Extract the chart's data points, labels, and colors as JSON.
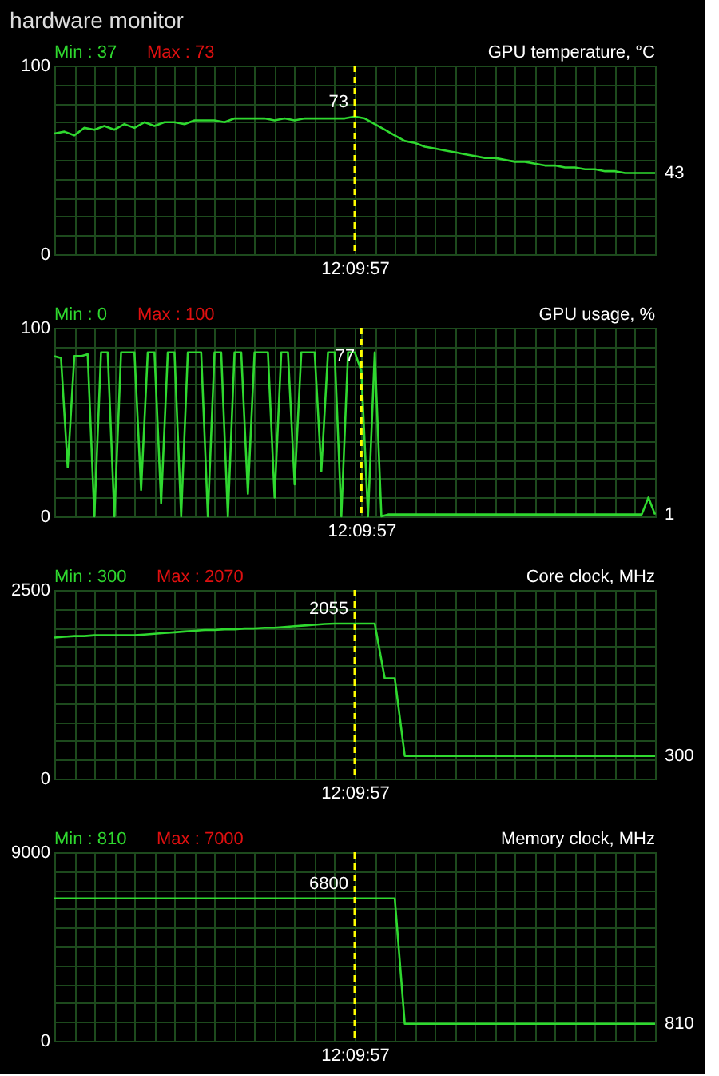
{
  "chart_data": [
    {
      "type": "line",
      "title": "hardware monitor",
      "subtitle": "GPU temperature, °C",
      "categories": [
        null,
        null,
        null,
        null,
        null,
        null,
        null,
        null,
        null,
        null,
        null,
        null,
        null,
        null,
        null,
        null,
        null,
        null,
        null,
        null,
        null,
        null,
        null,
        null,
        null,
        null,
        null,
        null,
        null,
        null,
        "12:09:57",
        null,
        null,
        null,
        null,
        null,
        null,
        null,
        null,
        null,
        null,
        null,
        null,
        null,
        null,
        null,
        null,
        null,
        null,
        null,
        null,
        null,
        null,
        null,
        null,
        null,
        null,
        null,
        null,
        null,
        null
      ],
      "series": [
        {
          "color": "#2fd82f",
          "values": [
            64,
            65,
            63,
            67,
            66,
            68,
            66,
            69,
            67,
            70,
            68,
            70,
            70,
            69,
            71,
            71,
            71,
            70,
            72,
            72,
            72,
            72,
            71,
            72,
            71,
            72,
            72,
            72,
            72,
            72,
            73,
            72,
            69,
            66,
            63,
            60,
            59,
            57,
            56,
            55,
            54,
            53,
            52,
            51,
            51,
            50,
            49,
            49,
            48,
            47,
            47,
            46,
            46,
            45,
            45,
            44,
            44,
            43,
            43,
            43,
            43
          ]
        }
      ],
      "ylim": [
        0,
        100
      ],
      "yticks": [
        0,
        {
          "value": 10,
          "label": null
        },
        {
          "value": 20,
          "label": null
        },
        {
          "value": 30,
          "label": null
        },
        {
          "value": 40,
          "label": null
        },
        {
          "value": 50,
          "label": null
        },
        {
          "value": 60,
          "label": null
        },
        {
          "value": 70,
          "label": null
        },
        {
          "value": 80,
          "label": null
        },
        {
          "value": 90,
          "label": null
        },
        100
      ],
      "grid": true,
      "ref_lines": [
        {
          "axis": "x",
          "value": "12:09:57",
          "color": "#ffff00",
          "line_style": "dashed"
        }
      ],
      "annotations": [
        "Min : 37",
        "Max : 73",
        {
          "text": "73",
          "x": "12:09:57",
          "y": 73
        },
        "43"
      ]
    },
    {
      "type": "line",
      "subtitle": "GPU usage, %",
      "categories": [
        null,
        null,
        null,
        null,
        null,
        null,
        null,
        null,
        null,
        null,
        null,
        null,
        null,
        null,
        null,
        null,
        null,
        null,
        null,
        null,
        null,
        null,
        null,
        null,
        null,
        null,
        null,
        null,
        null,
        null,
        null,
        null,
        null,
        null,
        null,
        null,
        null,
        null,
        null,
        null,
        null,
        null,
        null,
        null,
        null,
        null,
        "12:09:57",
        null,
        null,
        null,
        null,
        null,
        null,
        null,
        null,
        null,
        null,
        null,
        null,
        null,
        null,
        null,
        null,
        null,
        null,
        null,
        null,
        null,
        null,
        null,
        null,
        null,
        null,
        null,
        null,
        null,
        null,
        null,
        null,
        null,
        null,
        null,
        null,
        null,
        null,
        null,
        null,
        null,
        null,
        null,
        null
      ],
      "series": [
        {
          "color": "#2fd82f",
          "values": [
            85,
            84,
            26,
            85,
            85,
            86,
            0,
            87,
            87,
            0,
            87,
            87,
            87,
            14,
            87,
            87,
            7,
            87,
            87,
            0,
            87,
            87,
            87,
            0,
            87,
            87,
            0,
            87,
            87,
            12,
            87,
            87,
            87,
            10,
            87,
            87,
            17,
            87,
            87,
            87,
            24,
            87,
            87,
            0,
            87,
            87,
            77,
            0,
            87,
            0,
            1,
            1,
            1,
            1,
            1,
            1,
            1,
            1,
            1,
            1,
            1,
            1,
            1,
            1,
            1,
            1,
            1,
            1,
            1,
            1,
            1,
            1,
            1,
            1,
            1,
            1,
            1,
            1,
            1,
            1,
            1,
            1,
            1,
            1,
            1,
            1,
            1,
            1,
            1,
            10,
            1
          ]
        }
      ],
      "ylim": [
        0,
        100
      ],
      "yticks": [
        0,
        {
          "value": 10,
          "label": null
        },
        {
          "value": 20,
          "label": null
        },
        {
          "value": 30,
          "label": null
        },
        {
          "value": 40,
          "label": null
        },
        {
          "value": 50,
          "label": null
        },
        {
          "value": 60,
          "label": null
        },
        {
          "value": 70,
          "label": null
        },
        {
          "value": 80,
          "label": null
        },
        {
          "value": 90,
          "label": null
        },
        100
      ],
      "grid": true,
      "ref_lines": [
        {
          "axis": "x",
          "value": "12:09:57",
          "color": "#ffff00",
          "line_style": "dashed"
        }
      ],
      "annotations": [
        "Min : 0",
        "Max : 100",
        {
          "text": "77",
          "x": "12:09:57",
          "y": 77
        },
        "1"
      ]
    },
    {
      "type": "line",
      "subtitle": "Core clock, MHz",
      "categories": [
        null,
        null,
        null,
        null,
        null,
        null,
        null,
        null,
        null,
        null,
        null,
        null,
        null,
        null,
        null,
        null,
        null,
        null,
        null,
        null,
        null,
        null,
        null,
        null,
        null,
        null,
        null,
        null,
        null,
        null,
        "12:09:57",
        null,
        null,
        null,
        null,
        null,
        null,
        null,
        null,
        null,
        null,
        null,
        null,
        null,
        null,
        null,
        null,
        null,
        null,
        null,
        null,
        null,
        null,
        null,
        null,
        null,
        null,
        null,
        null,
        null,
        null
      ],
      "series": [
        {
          "color": "#2fd82f",
          "values": [
            1870,
            1880,
            1890,
            1890,
            1900,
            1900,
            1900,
            1900,
            1900,
            1910,
            1920,
            1930,
            1940,
            1950,
            1960,
            1970,
            1970,
            1980,
            1980,
            1990,
            1990,
            2000,
            2000,
            2010,
            2020,
            2030,
            2040,
            2050,
            2055,
            2055,
            2055,
            2055,
            2055,
            1330,
            1330,
            300,
            300,
            300,
            300,
            300,
            300,
            300,
            300,
            300,
            300,
            300,
            300,
            300,
            300,
            300,
            300,
            300,
            300,
            300,
            300,
            300,
            300,
            300,
            300,
            300,
            300
          ]
        }
      ],
      "ylim": [
        0,
        2500
      ],
      "yticks": [
        0,
        {
          "value": 250,
          "label": null
        },
        {
          "value": 500,
          "label": null
        },
        {
          "value": 750,
          "label": null
        },
        {
          "value": 1000,
          "label": null
        },
        {
          "value": 1250,
          "label": null
        },
        {
          "value": 1500,
          "label": null
        },
        {
          "value": 1750,
          "label": null
        },
        {
          "value": 2000,
          "label": null
        },
        {
          "value": 2250,
          "label": null
        },
        2500
      ],
      "grid": true,
      "ref_lines": [
        {
          "axis": "x",
          "value": "12:09:57",
          "color": "#ffff00",
          "line_style": "dashed"
        }
      ],
      "annotations": [
        "Min : 300",
        "Max : 2070",
        {
          "text": "2055",
          "x": "12:09:57",
          "y": 2055
        },
        "300"
      ]
    },
    {
      "type": "line",
      "subtitle": "Memory clock, MHz",
      "categories": [
        null,
        null,
        null,
        null,
        null,
        null,
        null,
        null,
        null,
        null,
        null,
        null,
        null,
        null,
        null,
        null,
        null,
        null,
        null,
        null,
        null,
        null,
        null,
        null,
        null,
        null,
        null,
        null,
        null,
        null,
        "12:09:57",
        null,
        null,
        null,
        null,
        null,
        null,
        null,
        null,
        null,
        null,
        null,
        null,
        null,
        null,
        null,
        null,
        null,
        null,
        null,
        null,
        null,
        null,
        null,
        null,
        null,
        null,
        null,
        null,
        null,
        null
      ],
      "series": [
        {
          "color": "#2fd82f",
          "values": [
            6800,
            6800,
            6800,
            6800,
            6800,
            6800,
            6800,
            6800,
            6800,
            6800,
            6800,
            6800,
            6800,
            6800,
            6800,
            6800,
            6800,
            6800,
            6800,
            6800,
            6800,
            6800,
            6800,
            6800,
            6800,
            6800,
            6800,
            6800,
            6800,
            6800,
            6800,
            6800,
            6800,
            6800,
            6800,
            810,
            810,
            810,
            810,
            810,
            810,
            810,
            810,
            810,
            810,
            810,
            810,
            810,
            810,
            810,
            810,
            810,
            810,
            810,
            810,
            810,
            810,
            810,
            810,
            810,
            810
          ]
        }
      ],
      "ylim": [
        0,
        9000
      ],
      "yticks": [
        0,
        {
          "value": 900,
          "label": null
        },
        {
          "value": 1800,
          "label": null
        },
        {
          "value": 2700,
          "label": null
        },
        {
          "value": 3600,
          "label": null
        },
        {
          "value": 4500,
          "label": null
        },
        {
          "value": 5400,
          "label": null
        },
        {
          "value": 6300,
          "label": null
        },
        {
          "value": 7200,
          "label": null
        },
        {
          "value": 8100,
          "label": null
        },
        9000
      ],
      "grid": true,
      "ref_lines": [
        {
          "axis": "x",
          "value": "12:09:57",
          "color": "#ffff00",
          "line_style": "dashed"
        }
      ],
      "annotations": [
        "Min : 810",
        "Max : 7000",
        {
          "text": "6800",
          "x": "12:09:57",
          "y": 6800
        },
        "810"
      ]
    }
  ]
}
